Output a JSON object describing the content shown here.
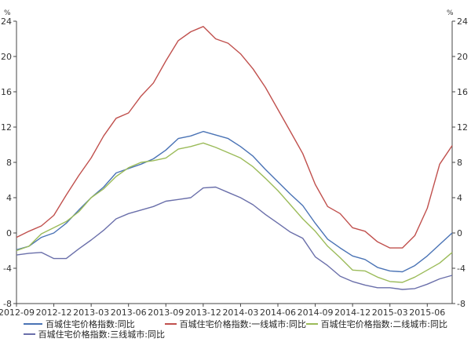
{
  "chart_data": {
    "type": "line",
    "unit_left": "%",
    "unit_right": "%",
    "ylim": [
      -8,
      24
    ],
    "yticks": [
      24,
      20,
      16,
      12,
      8,
      4,
      0,
      -4,
      -8
    ],
    "xticks": [
      "2012-09",
      "2012-12",
      "2013-03",
      "2013-06",
      "2013-09",
      "2013-12",
      "2014-03",
      "2014-06",
      "2014-09",
      "2014-12",
      "2015-03",
      "2015-06"
    ],
    "grid": false,
    "legend_position": "bottom",
    "series": [
      {
        "name": "百城住宅价格指数:同比",
        "color": "#4a73b5",
        "values": [
          -1.9,
          -1.5,
          -0.5,
          0.0,
          1.1,
          2.6,
          4.0,
          5.2,
          6.8,
          7.3,
          7.8,
          8.4,
          9.4,
          10.7,
          11.0,
          11.5,
          11.1,
          10.7,
          9.8,
          8.7,
          7.2,
          5.8,
          4.4,
          3.1,
          1.1,
          -0.7,
          -1.7,
          -2.6,
          -3.0,
          -3.9,
          -4.3,
          -4.4,
          -3.7,
          -2.6,
          -1.3,
          0.0
        ]
      },
      {
        "name": "百城住宅价格指数:一线城市:同比",
        "color": "#c0504d",
        "values": [
          -0.5,
          0.2,
          0.8,
          2.0,
          4.3,
          6.5,
          8.5,
          11.0,
          13.0,
          13.6,
          15.5,
          17.0,
          19.5,
          21.8,
          22.8,
          23.4,
          22.0,
          21.5,
          20.3,
          18.6,
          16.5,
          14.0,
          11.5,
          9.0,
          5.5,
          3.0,
          2.2,
          0.6,
          0.2,
          -1.0,
          -1.7,
          -1.7,
          -0.3,
          2.8,
          7.8,
          9.9
        ]
      },
      {
        "name": "百城住宅价格指数:二线城市:同比",
        "color": "#9bbb59",
        "values": [
          -2.0,
          -1.5,
          -0.1,
          0.6,
          1.3,
          2.4,
          4.0,
          5.0,
          6.4,
          7.4,
          8.0,
          8.2,
          8.5,
          9.5,
          9.8,
          10.2,
          9.7,
          9.1,
          8.5,
          7.5,
          6.2,
          4.8,
          3.2,
          1.6,
          0.2,
          -1.5,
          -2.8,
          -4.2,
          -4.3,
          -5.0,
          -5.5,
          -5.6,
          -5.0,
          -4.2,
          -3.4,
          -2.2
        ]
      },
      {
        "name": "百城住宅价格指数:三线城市:同比",
        "color": "#6a6faa",
        "values": [
          -2.5,
          -2.3,
          -2.2,
          -2.9,
          -2.9,
          -1.8,
          -0.8,
          0.3,
          1.6,
          2.2,
          2.6,
          3.0,
          3.6,
          3.8,
          4.0,
          5.1,
          5.2,
          4.6,
          4.0,
          3.2,
          2.1,
          1.1,
          0.1,
          -0.6,
          -2.7,
          -3.7,
          -4.9,
          -5.5,
          -5.9,
          -6.2,
          -6.2,
          -6.4,
          -6.3,
          -5.8,
          -5.2,
          -4.8
        ]
      }
    ]
  }
}
